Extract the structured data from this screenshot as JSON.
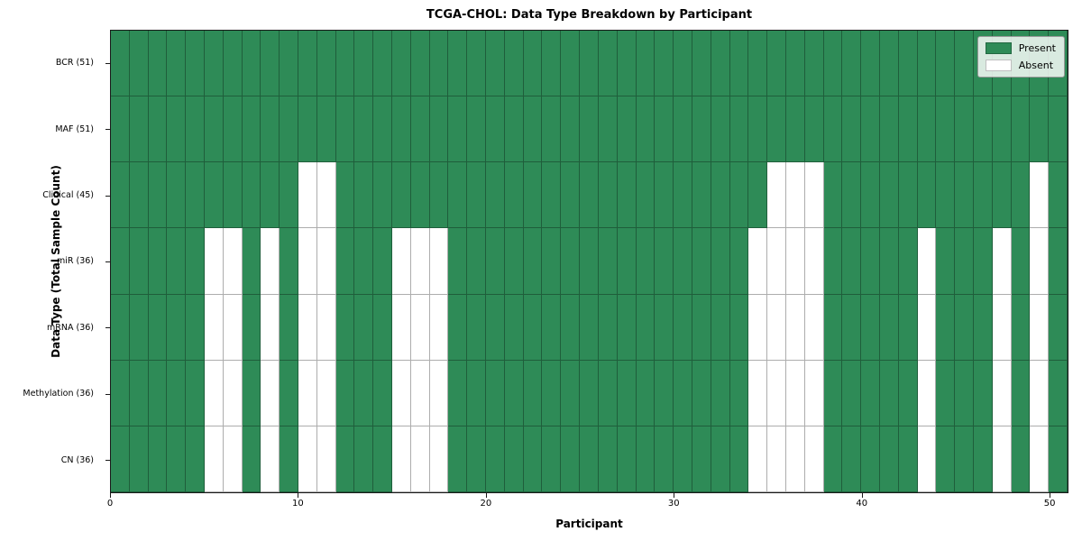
{
  "title": "TCGA-CHOL: Data Type Breakdown by Participant",
  "xlabel": "Participant",
  "ylabel": "Data Type (Total Sample Count)",
  "legend": {
    "present_label": "Present",
    "absent_label": "Absent"
  },
  "colors": {
    "present": "#2e8b57",
    "absent": "#ffffff",
    "spine": "#1a1a1a"
  },
  "chart_data": {
    "type": "heatmap",
    "n_participants": 51,
    "x_range": [
      0,
      51
    ],
    "x_ticks": [
      "0",
      "10",
      "20",
      "30",
      "40",
      "50"
    ],
    "x_tick_values": [
      0,
      10,
      20,
      30,
      40,
      50
    ],
    "legend_position": "upper right",
    "rows": [
      {
        "label": "BCR (51)",
        "data_type": "BCR",
        "present_count": 51,
        "absent_participants": []
      },
      {
        "label": "MAF (51)",
        "data_type": "MAF",
        "present_count": 51,
        "absent_participants": []
      },
      {
        "label": "Clinical (45)",
        "data_type": "Clinical",
        "present_count": 45,
        "absent_participants": [
          10,
          11,
          35,
          36,
          37,
          49
        ]
      },
      {
        "label": "miR (36)",
        "data_type": "miR",
        "present_count": 36,
        "absent_participants": [
          5,
          6,
          8,
          10,
          11,
          15,
          16,
          17,
          34,
          35,
          36,
          37,
          43,
          47,
          49
        ]
      },
      {
        "label": "mRNA (36)",
        "data_type": "mRNA",
        "present_count": 36,
        "absent_participants": [
          5,
          6,
          8,
          10,
          11,
          15,
          16,
          17,
          34,
          35,
          36,
          37,
          43,
          47,
          49
        ]
      },
      {
        "label": "Methylation (36)",
        "data_type": "Methylation",
        "present_count": 36,
        "absent_participants": [
          5,
          6,
          8,
          10,
          11,
          15,
          16,
          17,
          34,
          35,
          36,
          37,
          43,
          47,
          49
        ]
      },
      {
        "label": "CN (36)",
        "data_type": "CN",
        "present_count": 36,
        "absent_participants": [
          5,
          6,
          8,
          10,
          11,
          15,
          16,
          17,
          34,
          35,
          36,
          37,
          43,
          47,
          49
        ]
      }
    ]
  }
}
